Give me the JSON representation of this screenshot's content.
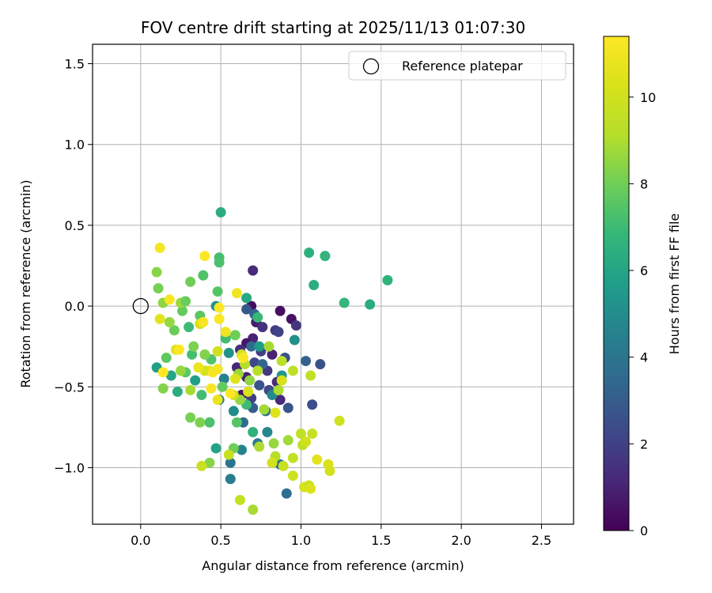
{
  "chart_data": {
    "type": "scatter",
    "title": "FOV centre drift starting at 2025/11/13 01:07:30",
    "xlabel": "Angular distance from reference (arcmin)",
    "ylabel": "Rotation from reference (arcmin)",
    "xlim": [
      -0.3,
      2.7
    ],
    "ylim": [
      -1.35,
      1.62
    ],
    "xticks": [
      0.0,
      0.5,
      1.0,
      1.5,
      2.0,
      2.5
    ],
    "xtick_labels": [
      "0.0",
      "0.5",
      "1.0",
      "1.5",
      "2.0",
      "2.5"
    ],
    "yticks": [
      -1.0,
      -0.5,
      0.0,
      0.5,
      1.0,
      1.5
    ],
    "ytick_labels": [
      "−1.0",
      "−0.5",
      "0.0",
      "0.5",
      "1.0",
      "1.5"
    ],
    "grid": true,
    "legend": {
      "position": "top-right",
      "entries": [
        "Reference platepar"
      ]
    },
    "reference_point": {
      "x": 0.0,
      "y": 0.0,
      "label": "Reference platepar"
    },
    "colorbar": {
      "label": "Hours from first FF file",
      "colormap": "viridis",
      "range": [
        0,
        11.4
      ],
      "ticks": [
        0,
        2,
        4,
        6,
        8,
        10
      ],
      "tick_labels": [
        "0",
        "2",
        "4",
        "6",
        "8",
        "10"
      ]
    },
    "points": [
      [
        0.7,
        0.22,
        1.2
      ],
      [
        0.69,
        0.0,
        0.4
      ],
      [
        0.87,
        -0.03,
        0.4
      ],
      [
        0.94,
        -0.08,
        0.5
      ],
      [
        0.72,
        -0.1,
        0.8
      ],
      [
        0.76,
        -0.13,
        1.5
      ],
      [
        0.84,
        -0.15,
        1.8
      ],
      [
        0.97,
        -0.12,
        1.6
      ],
      [
        0.7,
        -0.2,
        1.0
      ],
      [
        0.66,
        -0.23,
        0.6
      ],
      [
        0.62,
        -0.27,
        1.4
      ],
      [
        0.75,
        -0.28,
        2.0
      ],
      [
        0.82,
        -0.3,
        1.0
      ],
      [
        0.9,
        -0.32,
        2.5
      ],
      [
        0.71,
        -0.35,
        2.2
      ],
      [
        0.6,
        -0.38,
        1.1
      ],
      [
        0.79,
        -0.4,
        1.7
      ],
      [
        0.66,
        -0.44,
        0.9
      ],
      [
        0.74,
        -0.49,
        2.6
      ],
      [
        0.85,
        -0.47,
        1.3
      ],
      [
        0.63,
        -0.55,
        0.5
      ],
      [
        0.69,
        -0.57,
        1.9
      ],
      [
        0.8,
        -0.52,
        2.3
      ],
      [
        0.87,
        -0.58,
        1.2
      ],
      [
        1.07,
        -0.61,
        2.4
      ],
      [
        0.66,
        -0.02,
        2.8
      ],
      [
        0.71,
        -0.05,
        3.3
      ],
      [
        0.86,
        -0.16,
        2.1
      ],
      [
        0.69,
        -0.25,
        3.6
      ],
      [
        1.12,
        -0.36,
        2.6
      ],
      [
        1.03,
        -0.34,
        3.2
      ],
      [
        0.76,
        -0.36,
        3.4
      ],
      [
        0.7,
        -0.63,
        3.0
      ],
      [
        0.78,
        -0.65,
        3.8
      ],
      [
        0.92,
        -0.63,
        2.7
      ],
      [
        0.64,
        -0.72,
        3.5
      ],
      [
        0.73,
        -0.85,
        4.2
      ],
      [
        0.91,
        -1.16,
        3.7
      ],
      [
        0.56,
        -1.07,
        4.4
      ],
      [
        0.87,
        -0.98,
        3.9
      ],
      [
        0.79,
        -0.78,
        4.8
      ],
      [
        0.63,
        -0.89,
        4.6
      ],
      [
        0.58,
        -0.65,
        5.0
      ],
      [
        0.52,
        -0.45,
        4.5
      ],
      [
        0.49,
        -0.58,
        4.1
      ],
      [
        0.56,
        -0.97,
        4.0
      ],
      [
        0.47,
        -0.88,
        5.9
      ],
      [
        0.96,
        -0.21,
        5.1
      ],
      [
        0.74,
        -0.25,
        5.6
      ],
      [
        0.88,
        -0.43,
        5.4
      ],
      [
        0.82,
        -0.55,
        4.9
      ],
      [
        0.47,
        0.0,
        5.3
      ],
      [
        0.55,
        -0.29,
        5.2
      ],
      [
        0.34,
        -0.46,
        5.8
      ],
      [
        0.23,
        -0.53,
        6.3
      ],
      [
        0.1,
        -0.38,
        5.7
      ],
      [
        0.19,
        -0.43,
        6.0
      ],
      [
        0.66,
        0.05,
        6.2
      ],
      [
        0.73,
        -0.07,
        6.9
      ],
      [
        0.53,
        -0.2,
        7.1
      ],
      [
        0.5,
        0.58,
        6.4
      ],
      [
        1.05,
        0.33,
        6.5
      ],
      [
        1.15,
        0.31,
        6.7
      ],
      [
        1.08,
        0.13,
        6.4
      ],
      [
        1.54,
        0.16,
        6.6
      ],
      [
        1.27,
        0.02,
        6.8
      ],
      [
        1.43,
        0.01,
        6.3
      ],
      [
        0.39,
        0.19,
        7.4
      ],
      [
        0.49,
        0.3,
        7.2
      ],
      [
        0.49,
        0.27,
        7.3
      ],
      [
        0.48,
        0.09,
        7.5
      ],
      [
        0.37,
        -0.06,
        7.6
      ],
      [
        0.26,
        -0.03,
        7.8
      ],
      [
        0.3,
        -0.13,
        7.0
      ],
      [
        0.16,
        -0.32,
        7.7
      ],
      [
        0.21,
        -0.15,
        7.9
      ],
      [
        0.44,
        -0.33,
        7.4
      ],
      [
        0.32,
        -0.3,
        7.2
      ],
      [
        0.28,
        -0.41,
        7.6
      ],
      [
        0.38,
        -0.55,
        7.1
      ],
      [
        0.43,
        -0.72,
        7.3
      ],
      [
        0.51,
        -0.5,
        7.8
      ],
      [
        0.6,
        -0.72,
        7.5
      ],
      [
        0.66,
        -0.61,
        7.0
      ],
      [
        0.7,
        -0.78,
        6.6
      ],
      [
        0.59,
        -0.18,
        8.0
      ],
      [
        0.4,
        -0.3,
        8.3
      ],
      [
        0.25,
        -0.4,
        8.6
      ],
      [
        0.33,
        -0.25,
        8.2
      ],
      [
        0.1,
        0.21,
        8.4
      ],
      [
        0.11,
        0.11,
        8.1
      ],
      [
        0.14,
        0.02,
        8.5
      ],
      [
        0.25,
        0.02,
        8.7
      ],
      [
        0.28,
        0.03,
        7.9
      ],
      [
        0.31,
        0.15,
        8.0
      ],
      [
        0.37,
        -0.11,
        8.8
      ],
      [
        0.18,
        -0.1,
        8.6
      ],
      [
        0.14,
        -0.51,
        8.3
      ],
      [
        0.31,
        -0.52,
        8.9
      ],
      [
        0.37,
        -0.72,
        8.2
      ],
      [
        0.31,
        -0.69,
        8.1
      ],
      [
        0.43,
        -0.97,
        8.4
      ],
      [
        0.58,
        -0.88,
        8.0
      ],
      [
        0.62,
        -0.58,
        8.6
      ],
      [
        0.77,
        -0.64,
        8.8
      ],
      [
        0.61,
        -0.42,
        8.7
      ],
      [
        0.68,
        -0.46,
        8.5
      ],
      [
        0.8,
        -0.25,
        8.9
      ],
      [
        0.86,
        -0.52,
        9.0
      ],
      [
        0.73,
        -0.4,
        9.2
      ],
      [
        0.65,
        -0.36,
        9.1
      ],
      [
        0.88,
        -0.34,
        9.3
      ],
      [
        0.95,
        -0.4,
        9.4
      ],
      [
        0.74,
        -0.87,
        9.0
      ],
      [
        0.83,
        -0.85,
        8.6
      ],
      [
        0.92,
        -0.83,
        8.8
      ],
      [
        1.0,
        -0.79,
        9.5
      ],
      [
        0.84,
        -0.93,
        9.2
      ],
      [
        0.7,
        -1.26,
        8.9
      ],
      [
        0.62,
        -1.2,
        9.6
      ],
      [
        0.55,
        -0.92,
        9.7
      ],
      [
        0.89,
        -0.99,
        9.8
      ],
      [
        0.95,
        -1.05,
        9.9
      ],
      [
        0.82,
        -0.97,
        10.1
      ],
      [
        0.95,
        -0.94,
        9.6
      ],
      [
        1.01,
        -0.86,
        9.4
      ],
      [
        1.03,
        -0.84,
        10.0
      ],
      [
        1.02,
        -1.12,
        10.2
      ],
      [
        1.05,
        -1.11,
        9.8
      ],
      [
        1.06,
        -1.13,
        10.4
      ],
      [
        1.1,
        -0.95,
        10.6
      ],
      [
        1.17,
        -0.98,
        10.3
      ],
      [
        1.18,
        -1.02,
        10.1
      ],
      [
        1.24,
        -0.71,
        10.0
      ],
      [
        1.07,
        -0.79,
        9.7
      ],
      [
        1.06,
        -0.43,
        9.5
      ],
      [
        0.88,
        -0.46,
        10.3
      ],
      [
        0.84,
        -0.66,
        10.5
      ],
      [
        0.67,
        -0.53,
        10.2
      ],
      [
        0.58,
        -0.55,
        9.9
      ],
      [
        0.48,
        -0.58,
        10.8
      ],
      [
        0.43,
        -0.4,
        10.7
      ],
      [
        0.38,
        -0.99,
        9.8
      ],
      [
        0.59,
        -0.45,
        10.4
      ],
      [
        0.63,
        -0.3,
        10.1
      ],
      [
        0.4,
        -0.4,
        10.2
      ],
      [
        0.37,
        -0.11,
        10.3
      ],
      [
        0.22,
        -0.27,
        10.5
      ],
      [
        0.12,
        -0.08,
        10.6
      ],
      [
        0.36,
        -0.38,
        10.9
      ],
      [
        0.48,
        -0.28,
        10.0
      ],
      [
        0.6,
        0.08,
        11.0
      ],
      [
        0.45,
        -0.41,
        11.2
      ],
      [
        0.4,
        0.31,
        11.3
      ],
      [
        0.12,
        0.36,
        11.1
      ],
      [
        0.18,
        0.04,
        11.2
      ],
      [
        0.49,
        -0.01,
        11.4
      ],
      [
        0.49,
        -0.08,
        11.3
      ],
      [
        0.53,
        -0.16,
        11.0
      ],
      [
        0.39,
        -0.1,
        11.2
      ],
      [
        0.64,
        -0.32,
        11.3
      ],
      [
        0.56,
        -0.54,
        11.4
      ],
      [
        0.48,
        -0.39,
        11.1
      ],
      [
        0.24,
        -0.27,
        11.3
      ],
      [
        0.14,
        -0.41,
        11.4
      ],
      [
        0.44,
        -0.51,
        11.2
      ]
    ]
  }
}
